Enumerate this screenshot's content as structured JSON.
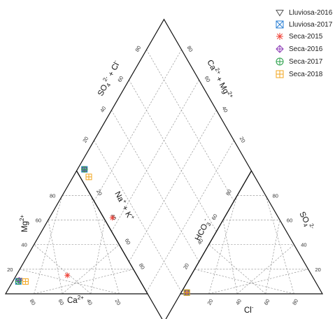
{
  "chart_data": {
    "type": "scatter",
    "subtype": "piper-diagram",
    "title": "",
    "ticks": {
      "cation_ca": [
        "80",
        "60",
        "40",
        "20"
      ],
      "cation_mg": [
        "20",
        "40",
        "60",
        "80"
      ],
      "anion_cl": [
        "20",
        "40",
        "60",
        "80"
      ],
      "anion_so4": [
        "20",
        "40",
        "60",
        "80"
      ],
      "diamond_nak": [
        "20",
        "40",
        "60",
        "80"
      ],
      "diamond_so4cl": [
        "20",
        "40",
        "60",
        "80"
      ],
      "diamond_hco3": [
        "80",
        "60",
        "40",
        "20"
      ],
      "diamond_camg": [
        "80",
        "60",
        "40",
        "20"
      ]
    },
    "axis_labels": {
      "ca": "Ca",
      "ca_sup": "2+",
      "mg": "Mg",
      "mg_sup": "2+",
      "nak_1": "Na",
      "nak_sup1": "+",
      "nak_2": " + K",
      "nak_sup2": "+",
      "cl": "Cl",
      "cl_sup": "-",
      "so4": "SO",
      "so4_sub": "4",
      "so4_sup": "2-",
      "hco3": "HCO",
      "hco3_sub": "3",
      "hco3_sup": "-",
      "so4cl_1": "SO",
      "so4cl_sub": "4",
      "so4cl_sup": "2-",
      "so4cl_2": " + Cl",
      "so4cl_sup2": "-",
      "camg_1": "Ca",
      "camg_sup1": "2+",
      "camg_2": " + Mg",
      "camg_sup2": "2+"
    },
    "legend_position": "top-right",
    "series": [
      {
        "name": "Lluviosa-2016",
        "marker": "triangle-down",
        "color": "#555555",
        "points": [
          {
            "ca": 85,
            "mg": 11,
            "cl": 4,
            "so4": 1
          }
        ]
      },
      {
        "name": "Lluviosa-2017",
        "marker": "square-x",
        "color": "#2a7fd4",
        "points": [
          {
            "ca": 86,
            "mg": 10,
            "cl": 4,
            "so4": 1
          }
        ]
      },
      {
        "name": "Seca-2015",
        "marker": "asterisk",
        "color": "#f0443a",
        "points": [
          {
            "ca": 49,
            "mg": 15,
            "cl": 4,
            "so4": 1
          }
        ]
      },
      {
        "name": "Seca-2016",
        "marker": "diamond-plus",
        "color": "#8e3fb8",
        "points": [
          {
            "ca": 85,
            "mg": 11,
            "cl": 4,
            "so4": 1
          }
        ]
      },
      {
        "name": "Seca-2017",
        "marker": "circle-plus",
        "color": "#2aa04a",
        "points": [
          {
            "ca": 86,
            "mg": 10,
            "cl": 4,
            "so4": 1
          }
        ]
      },
      {
        "name": "Seca-2018",
        "marker": "square-plus",
        "color": "#f2a51c",
        "points": [
          {
            "ca": 81,
            "mg": 10,
            "cl": 4,
            "so4": 1
          }
        ]
      }
    ]
  }
}
